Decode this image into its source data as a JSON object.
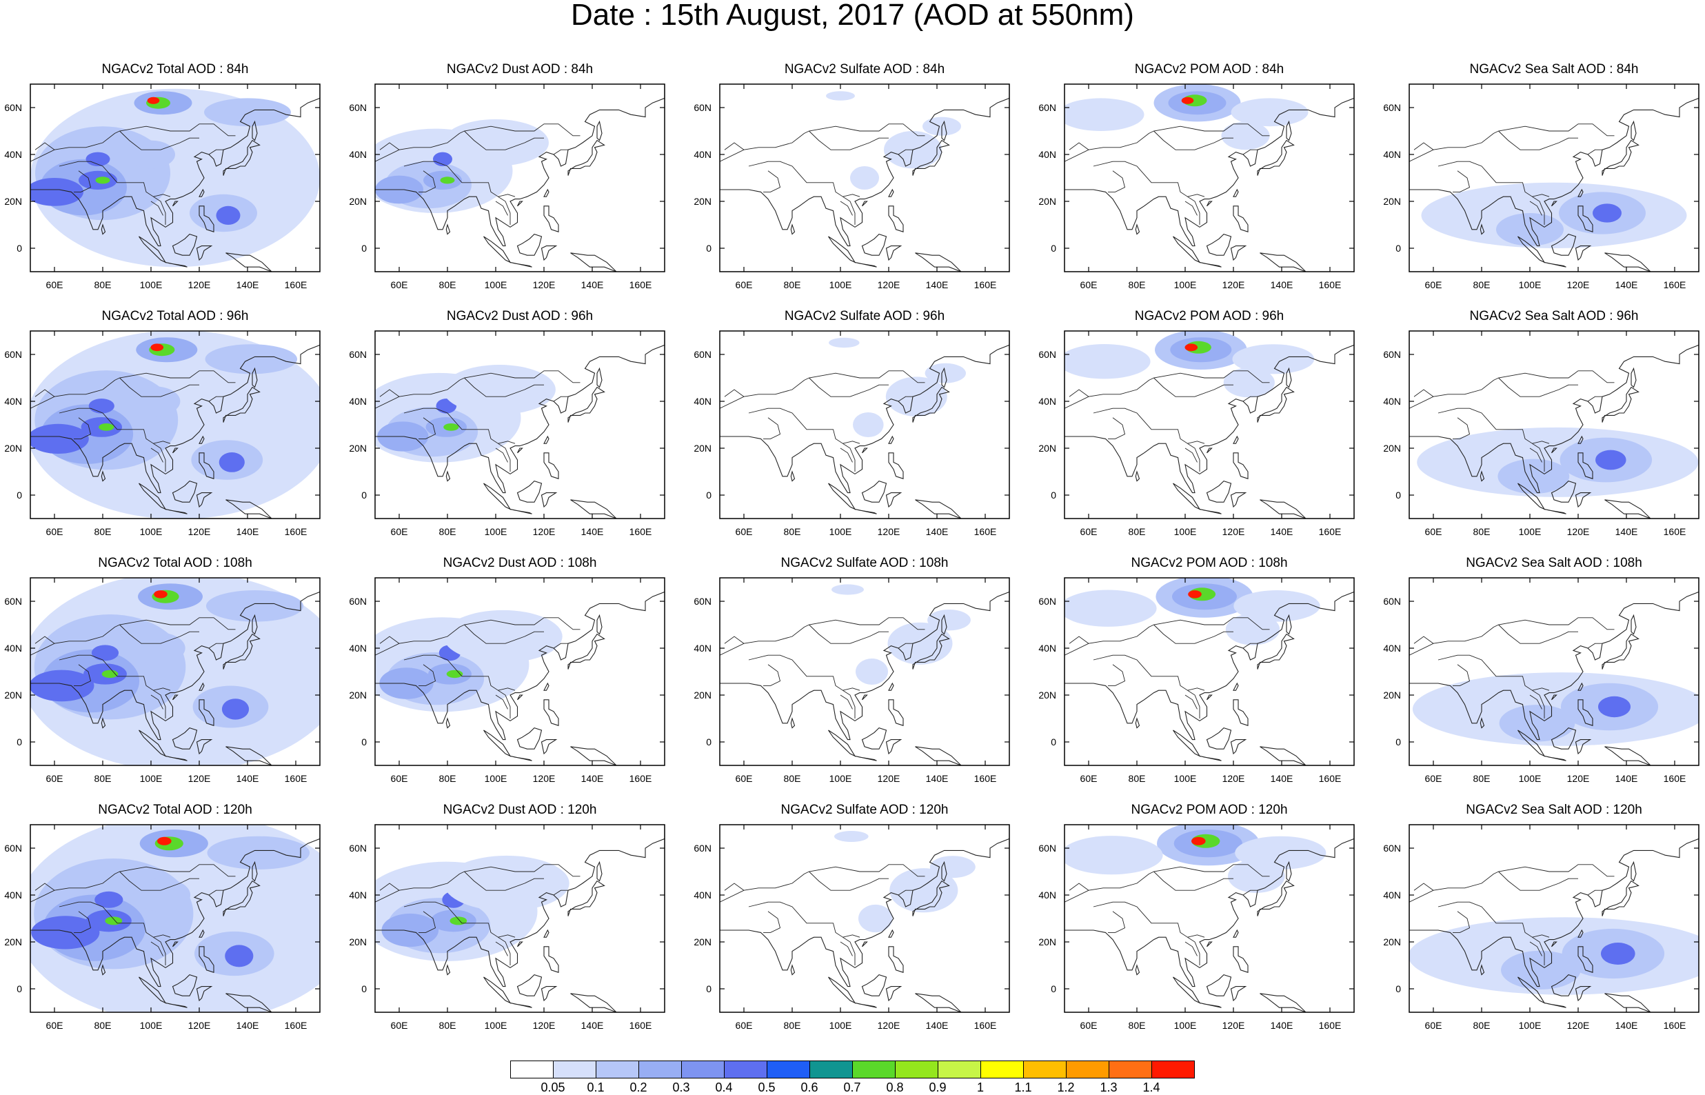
{
  "figure_title": "Date : 15th August, 2017 (AOD at 550nm)",
  "axis_ticks": {
    "lon": [
      "60E",
      "80E",
      "100E",
      "120E",
      "140E",
      "160E"
    ],
    "lat": [
      "60N",
      "40N",
      "20N",
      "0"
    ]
  },
  "lon_range": [
    50,
    170
  ],
  "lat_range": [
    -10,
    70
  ],
  "panel_rows": [
    [
      "NGACv2 Total AOD : 84h",
      "NGACv2 Dust AOD : 84h",
      "NGACv2 Sulfate AOD : 84h",
      "NGACv2 POM AOD : 84h",
      "NGACv2 Sea Salt AOD : 84h"
    ],
    [
      "NGACv2 Total AOD : 96h",
      "NGACv2 Dust AOD : 96h",
      "NGACv2 Sulfate AOD : 96h",
      "NGACv2 POM AOD : 96h",
      "NGACv2 Sea Salt AOD : 96h"
    ],
    [
      "NGACv2 Total AOD : 108h",
      "NGACv2 Dust AOD : 108h",
      "NGACv2 Sulfate AOD : 108h",
      "NGACv2 POM AOD : 108h",
      "NGACv2 Sea Salt AOD : 108h"
    ],
    [
      "NGACv2 Total AOD : 120h",
      "NGACv2 Dust AOD : 120h",
      "NGACv2 Sulfate AOD : 120h",
      "NGACv2 POM AOD : 120h",
      "NGACv2 Sea Salt  AOD : 120h"
    ]
  ],
  "colorbar": {
    "labels": [
      "0.05",
      "0.1",
      "0.2",
      "0.3",
      "0.4",
      "0.5",
      "0.6",
      "0.7",
      "0.8",
      "0.9",
      "1",
      "1.1",
      "1.2",
      "1.3",
      "1.4"
    ],
    "colors": [
      "#ffffff",
      "#d6e0fb",
      "#b6c7f8",
      "#98aef4",
      "#7e94f1",
      "#5e6ff0",
      "#1f5ef6",
      "#119591",
      "#5ad82a",
      "#94e61d",
      "#c7f547",
      "#ffff00",
      "#ffbe00",
      "#ff9b00",
      "#ff6f14",
      "#ff1a00"
    ]
  },
  "map_colors": {
    "coast": "#222222",
    "low": "#d6e0fb",
    "mid": "#b6c7f8",
    "high": "#98aef4",
    "peak": "#5e6ff0",
    "hot": "#5ad82a",
    "hotter": "#ffff00",
    "max": "#ff1a00"
  }
}
